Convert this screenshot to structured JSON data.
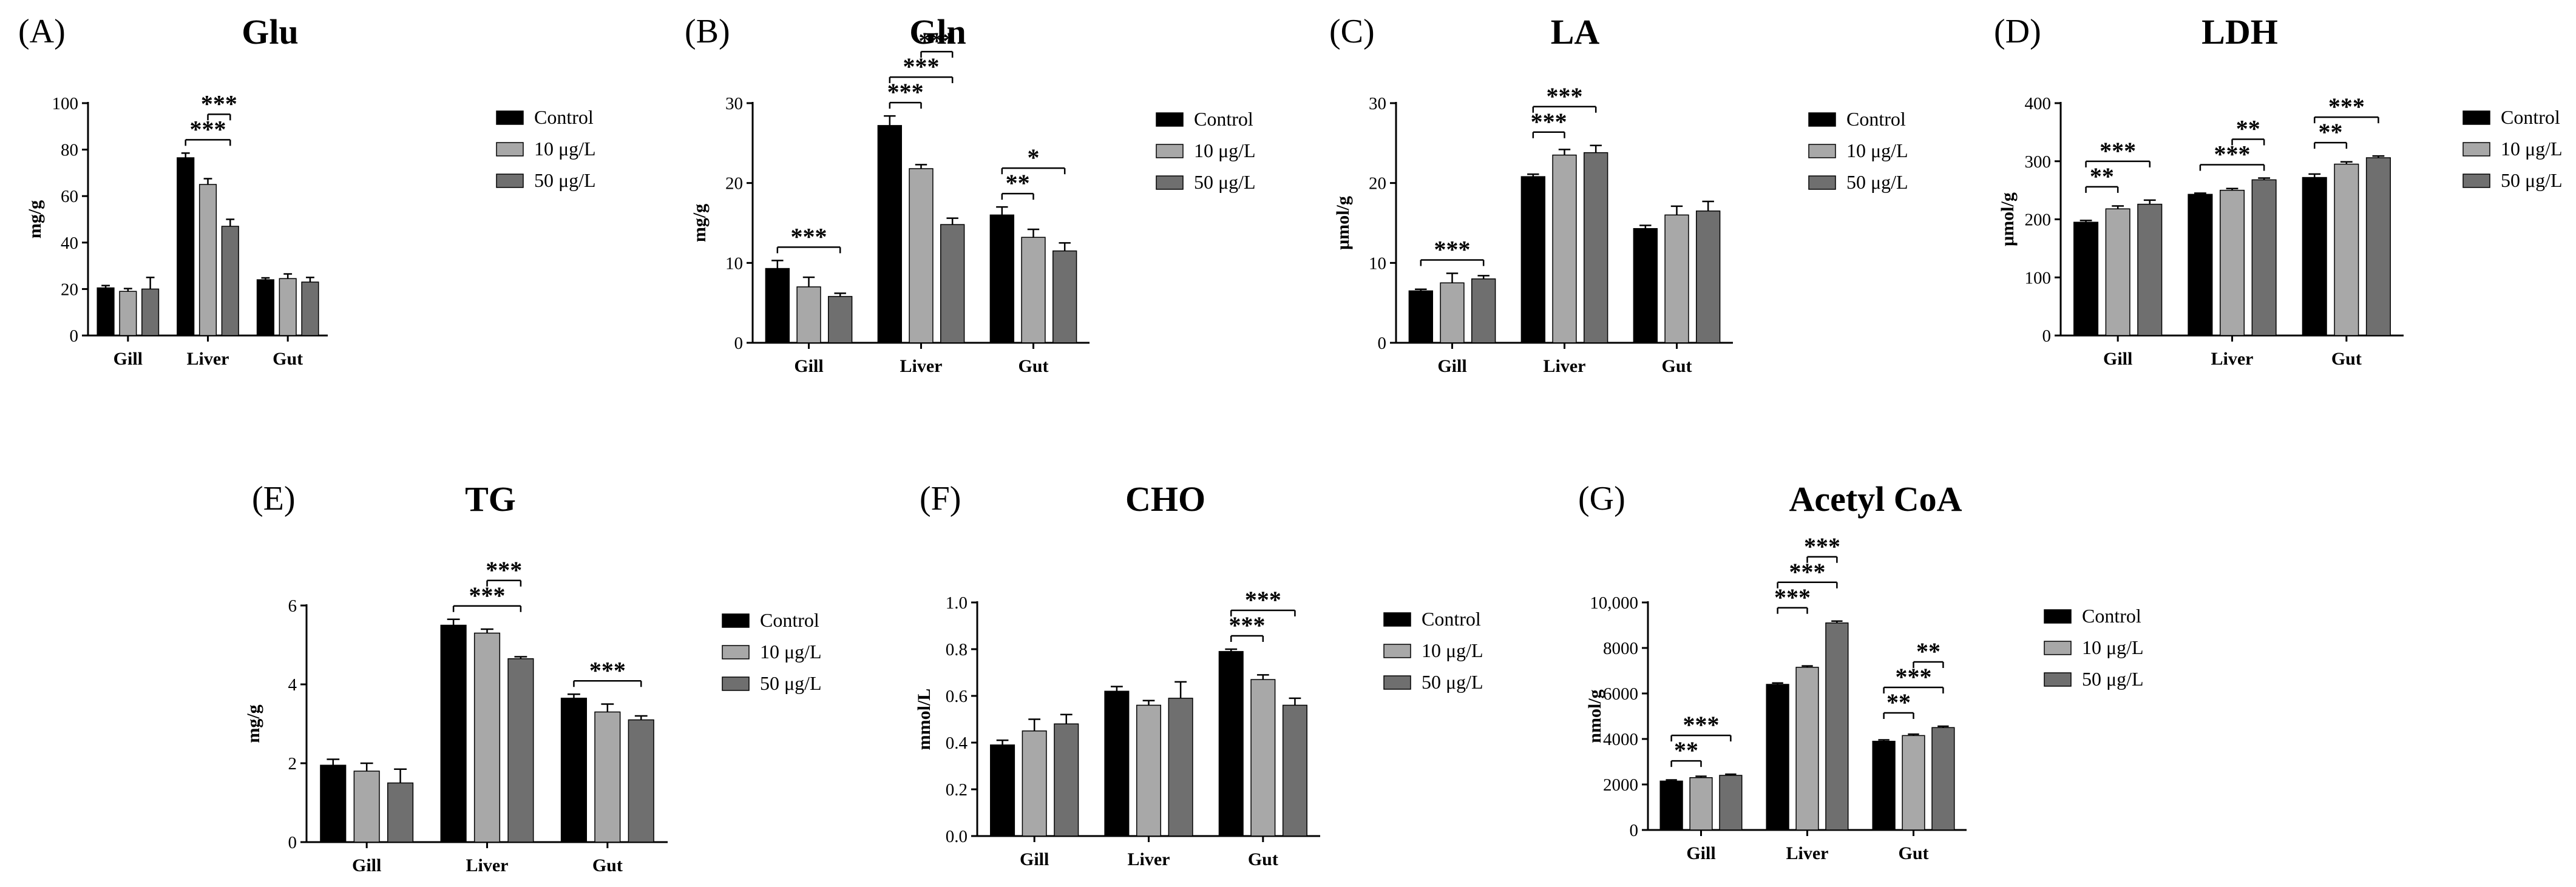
{
  "legend_labels": [
    "Control",
    "10 μg/L",
    "50 μg/L"
  ],
  "colors": {
    "control": "#000000",
    "low": "#a8a8a8",
    "high": "#6f6f6f",
    "axis": "#000000"
  },
  "chart_data": [
    {
      "panel": "(A)",
      "type": "bar",
      "title": "Glu",
      "ylabel": "mg/g",
      "categories": [
        "Gill",
        "Liver",
        "Gut"
      ],
      "ylim": [
        0,
        100
      ],
      "yticks": [
        "0",
        "20",
        "40",
        "60",
        "80",
        "100"
      ],
      "ytick_values": [
        0,
        20,
        40,
        60,
        80,
        100
      ],
      "series": [
        {
          "name": "Control",
          "values": [
            20.5,
            76.5,
            24
          ],
          "errors": [
            1,
            2,
            0.8
          ]
        },
        {
          "name": "10 μg/L",
          "values": [
            19,
            65,
            24.5
          ],
          "errors": [
            1.2,
            2.5,
            2
          ]
        },
        {
          "name": "50 μg/L",
          "values": [
            20,
            47,
            23
          ],
          "errors": [
            5,
            3,
            2
          ]
        }
      ],
      "significance": [
        {
          "cat": 1,
          "from": 0,
          "to": 2,
          "label": "***"
        },
        {
          "cat": 1,
          "from": 1,
          "to": 2,
          "label": "***"
        }
      ]
    },
    {
      "panel": "(B)",
      "type": "bar",
      "title": "Gln",
      "ylabel": "mg/g",
      "categories": [
        "Gill",
        "Liver",
        "Gut"
      ],
      "ylim": [
        0,
        30
      ],
      "yticks": [
        "0",
        "10",
        "20",
        "30"
      ],
      "ytick_values": [
        0,
        10,
        20,
        30
      ],
      "series": [
        {
          "name": "Control",
          "values": [
            9.3,
            27.2,
            16
          ],
          "errors": [
            1,
            1.2,
            1
          ]
        },
        {
          "name": "10 μg/L",
          "values": [
            7,
            21.8,
            13.2
          ],
          "errors": [
            1.2,
            0.5,
            1
          ]
        },
        {
          "name": "50 μg/L",
          "values": [
            5.8,
            14.8,
            11.5
          ],
          "errors": [
            0.4,
            0.8,
            1
          ]
        }
      ],
      "significance": [
        {
          "cat": 0,
          "from": 0,
          "to": 2,
          "label": "***"
        },
        {
          "cat": 1,
          "from": 0,
          "to": 1,
          "label": "***"
        },
        {
          "cat": 1,
          "from": 0,
          "to": 2,
          "label": "***"
        },
        {
          "cat": 1,
          "from": 1,
          "to": 2,
          "label": "***"
        },
        {
          "cat": 2,
          "from": 0,
          "to": 1,
          "label": "**"
        },
        {
          "cat": 2,
          "from": 0,
          "to": 2,
          "label": "*"
        }
      ]
    },
    {
      "panel": "(C)",
      "type": "bar",
      "title": "LA",
      "ylabel": "μmol/g",
      "categories": [
        "Gill",
        "Liver",
        "Gut"
      ],
      "ylim": [
        0,
        30
      ],
      "yticks": [
        "0",
        "10",
        "20",
        "30"
      ],
      "ytick_values": [
        0,
        10,
        20,
        30
      ],
      "series": [
        {
          "name": "Control",
          "values": [
            6.5,
            20.8,
            14.3
          ],
          "errors": [
            0.2,
            0.3,
            0.4
          ]
        },
        {
          "name": "10 μg/L",
          "values": [
            7.5,
            23.5,
            16
          ],
          "errors": [
            1.2,
            0.7,
            1.1
          ]
        },
        {
          "name": "50 μg/L",
          "values": [
            8,
            23.8,
            16.5
          ],
          "errors": [
            0.4,
            0.9,
            1.2
          ]
        }
      ],
      "significance": [
        {
          "cat": 0,
          "from": 0,
          "to": 2,
          "label": "***"
        },
        {
          "cat": 1,
          "from": 0,
          "to": 1,
          "label": "***"
        },
        {
          "cat": 1,
          "from": 0,
          "to": 2,
          "label": "***"
        }
      ]
    },
    {
      "panel": "(D)",
      "type": "bar",
      "title": "LDH",
      "ylabel": "μmol/g",
      "categories": [
        "Gill",
        "Liver",
        "Gut"
      ],
      "ylim": [
        0,
        400
      ],
      "yticks": [
        "0",
        "100",
        "200",
        "300",
        "400"
      ],
      "ytick_values": [
        0,
        100,
        200,
        300,
        400
      ],
      "series": [
        {
          "name": "Control",
          "values": [
            195,
            243,
            272
          ],
          "errors": [
            3,
            2,
            6
          ]
        },
        {
          "name": "10 μg/L",
          "values": [
            218,
            250,
            295
          ],
          "errors": [
            5,
            3,
            4
          ]
        },
        {
          "name": "50 μg/L",
          "values": [
            226,
            268,
            306
          ],
          "errors": [
            7,
            3,
            3
          ]
        }
      ],
      "significance": [
        {
          "cat": 0,
          "from": 0,
          "to": 1,
          "label": "**"
        },
        {
          "cat": 0,
          "from": 0,
          "to": 2,
          "label": "***"
        },
        {
          "cat": 1,
          "from": 0,
          "to": 2,
          "label": "***"
        },
        {
          "cat": 1,
          "from": 1,
          "to": 2,
          "label": "**"
        },
        {
          "cat": 2,
          "from": 0,
          "to": 1,
          "label": "**"
        },
        {
          "cat": 2,
          "from": 0,
          "to": 2,
          "label": "***"
        }
      ]
    },
    {
      "panel": "(E)",
      "type": "bar",
      "title": "TG",
      "ylabel": "mg/g",
      "categories": [
        "Gill",
        "Liver",
        "Gut"
      ],
      "ylim": [
        0,
        6
      ],
      "yticks": [
        "0",
        "2",
        "4",
        "6"
      ],
      "ytick_values": [
        0,
        2,
        4,
        6
      ],
      "series": [
        {
          "name": "Control",
          "values": [
            1.95,
            5.5,
            3.65
          ],
          "errors": [
            0.15,
            0.15,
            0.1
          ]
        },
        {
          "name": "10 μg/L",
          "values": [
            1.8,
            5.3,
            3.3
          ],
          "errors": [
            0.2,
            0.1,
            0.2
          ]
        },
        {
          "name": "50 μg/L",
          "values": [
            1.5,
            4.65,
            3.1
          ],
          "errors": [
            0.35,
            0.05,
            0.1
          ]
        }
      ],
      "significance": [
        {
          "cat": 1,
          "from": 0,
          "to": 2,
          "label": "***"
        },
        {
          "cat": 1,
          "from": 1,
          "to": 2,
          "label": "***"
        },
        {
          "cat": 2,
          "from": 0,
          "to": 2,
          "label": "***"
        }
      ]
    },
    {
      "panel": "(F)",
      "type": "bar",
      "title": "CHO",
      "ylabel": "mmol/L",
      "categories": [
        "Gill",
        "Liver",
        "Gut"
      ],
      "ylim": [
        0,
        1.0
      ],
      "yticks": [
        "0.0",
        "0.2",
        "0.4",
        "0.6",
        "0.8",
        "1.0"
      ],
      "ytick_values": [
        0,
        0.2,
        0.4,
        0.6,
        0.8,
        1.0
      ],
      "series": [
        {
          "name": "Control",
          "values": [
            0.39,
            0.62,
            0.79
          ],
          "errors": [
            0.02,
            0.02,
            0.01
          ]
        },
        {
          "name": "10 μg/L",
          "values": [
            0.45,
            0.56,
            0.67
          ],
          "errors": [
            0.05,
            0.02,
            0.02
          ]
        },
        {
          "name": "50 μg/L",
          "values": [
            0.48,
            0.59,
            0.56
          ],
          "errors": [
            0.04,
            0.07,
            0.03
          ]
        }
      ],
      "significance": [
        {
          "cat": 2,
          "from": 0,
          "to": 1,
          "label": "***"
        },
        {
          "cat": 2,
          "from": 0,
          "to": 2,
          "label": "***"
        }
      ]
    },
    {
      "panel": "(G)",
      "type": "bar",
      "title": "Acetyl CoA",
      "ylabel": "nmol/g",
      "categories": [
        "Gill",
        "Liver",
        "Gut"
      ],
      "ylim": [
        0,
        10000
      ],
      "yticks": [
        "0",
        "2000",
        "4000",
        "6000",
        "8000",
        "10,000"
      ],
      "ytick_values": [
        0,
        2000,
        4000,
        6000,
        8000,
        10000
      ],
      "series": [
        {
          "name": "Control",
          "values": [
            2150,
            6400,
            3900
          ],
          "errors": [
            50,
            60,
            60
          ]
        },
        {
          "name": "10 μg/L",
          "values": [
            2300,
            7150,
            4150
          ],
          "errors": [
            60,
            60,
            60
          ]
        },
        {
          "name": "50 μg/L",
          "values": [
            2400,
            9100,
            4500
          ],
          "errors": [
            50,
            80,
            60
          ]
        }
      ],
      "significance": [
        {
          "cat": 0,
          "from": 0,
          "to": 1,
          "label": "**"
        },
        {
          "cat": 0,
          "from": 0,
          "to": 2,
          "label": "***"
        },
        {
          "cat": 1,
          "from": 0,
          "to": 1,
          "label": "***"
        },
        {
          "cat": 1,
          "from": 0,
          "to": 2,
          "label": "***"
        },
        {
          "cat": 1,
          "from": 1,
          "to": 2,
          "label": "***"
        },
        {
          "cat": 2,
          "from": 0,
          "to": 1,
          "label": "**"
        },
        {
          "cat": 2,
          "from": 0,
          "to": 2,
          "label": "***"
        },
        {
          "cat": 2,
          "from": 1,
          "to": 2,
          "label": "**"
        }
      ]
    }
  ]
}
